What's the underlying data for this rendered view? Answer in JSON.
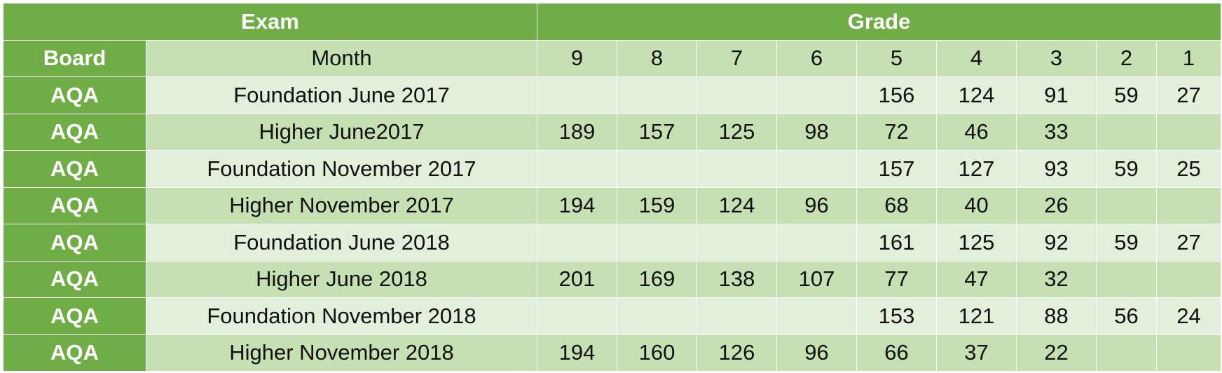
{
  "header": {
    "exam_label": "Exam",
    "grade_label": "Grade",
    "board_label": "Board",
    "month_label": "Month",
    "grades": [
      "9",
      "8",
      "7",
      "6",
      "5",
      "4",
      "3",
      "2",
      "1"
    ]
  },
  "rows": [
    {
      "board": "AQA",
      "month": "Foundation June 2017",
      "values": [
        "",
        "",
        "",
        "",
        "156",
        "124",
        "91",
        "59",
        "27"
      ]
    },
    {
      "board": "AQA",
      "month": "Higher June2017",
      "values": [
        "189",
        "157",
        "125",
        "98",
        "72",
        "46",
        "33",
        "",
        ""
      ]
    },
    {
      "board": "AQA",
      "month": "Foundation November 2017",
      "values": [
        "",
        "",
        "",
        "",
        "157",
        "127",
        "93",
        "59",
        "25"
      ]
    },
    {
      "board": "AQA",
      "month": "Higher November 2017",
      "values": [
        "194",
        "159",
        "124",
        "96",
        "68",
        "40",
        "26",
        "",
        ""
      ]
    },
    {
      "board": "AQA",
      "month": "Foundation June 2018",
      "values": [
        "",
        "",
        "",
        "",
        "161",
        "125",
        "92",
        "59",
        "27"
      ]
    },
    {
      "board": "AQA",
      "month": "Higher June 2018",
      "values": [
        "201",
        "169",
        "138",
        "107",
        "77",
        "47",
        "32",
        "",
        ""
      ]
    },
    {
      "board": "AQA",
      "month": "Foundation November 2018",
      "values": [
        "",
        "",
        "",
        "",
        "153",
        "121",
        "88",
        "56",
        "24"
      ]
    },
    {
      "board": "AQA",
      "month": "Higher November 2018",
      "values": [
        "194",
        "160",
        "126",
        "96",
        "66",
        "37",
        "22",
        "",
        ""
      ]
    }
  ]
}
